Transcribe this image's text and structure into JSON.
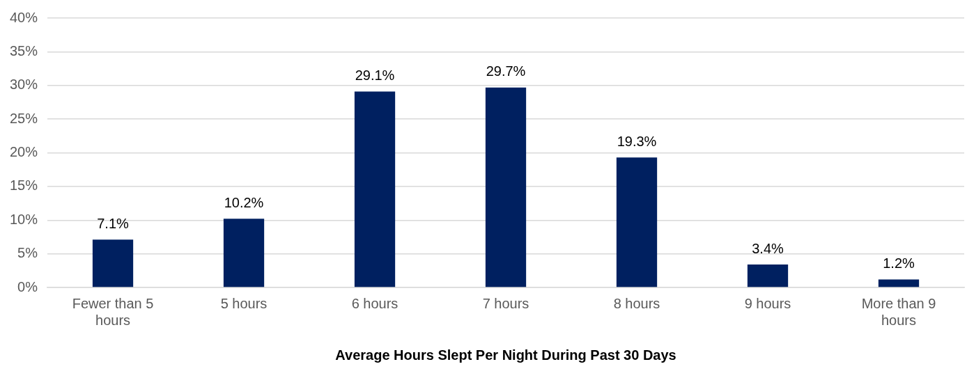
{
  "chart_data": {
    "type": "bar",
    "xlabel": "Average Hours Slept Per Night During Past 30 Days",
    "categories": [
      "Fewer than 5 hours",
      "5 hours",
      "6 hours",
      "7 hours",
      "8 hours",
      "9 hours",
      "More than 9 hours"
    ],
    "values": [
      7.1,
      10.2,
      29.1,
      29.7,
      19.3,
      3.4,
      1.2
    ],
    "value_labels": [
      "7.1%",
      "10.2%",
      "29.1%",
      "29.7%",
      "19.3%",
      "3.4%",
      "1.2%"
    ],
    "color": "#002060",
    "ylim": [
      0,
      40
    ],
    "yticks": [
      {
        "value": 0,
        "label": "0%"
      },
      {
        "value": 5,
        "label": "5%"
      },
      {
        "value": 10,
        "label": "10%"
      },
      {
        "value": 15,
        "label": "15%"
      },
      {
        "value": 20,
        "label": "20%"
      },
      {
        "value": 25,
        "label": "25%"
      },
      {
        "value": 30,
        "label": "30%"
      },
      {
        "value": 35,
        "label": "35%"
      },
      {
        "value": 40,
        "label": "40%"
      }
    ],
    "grid": "y",
    "legend": false
  }
}
